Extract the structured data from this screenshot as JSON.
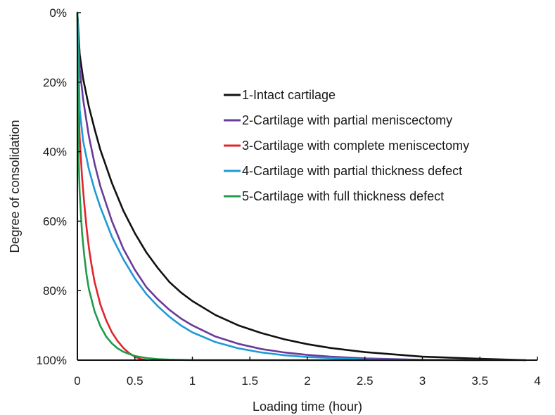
{
  "chart_data": {
    "type": "line",
    "title": "",
    "xlabel": "Loading time (hour)",
    "ylabel": "Degree of consolidation",
    "xlim": [
      0,
      4
    ],
    "ylim": [
      0,
      100
    ],
    "y_axis_inverted": true,
    "grid": false,
    "legend_position": "top-right",
    "x_ticks": [
      {
        "value": 0,
        "label": "0"
      },
      {
        "value": 0.5,
        "label": "0.5"
      },
      {
        "value": 1,
        "label": "1"
      },
      {
        "value": 1.5,
        "label": "1.5"
      },
      {
        "value": 2,
        "label": "2"
      },
      {
        "value": 2.5,
        "label": "2.5"
      },
      {
        "value": 3,
        "label": "3"
      },
      {
        "value": 3.5,
        "label": "3.5"
      },
      {
        "value": 4,
        "label": "4"
      }
    ],
    "y_ticks": [
      {
        "value": 0,
        "label": "0%"
      },
      {
        "value": 20,
        "label": "20%"
      },
      {
        "value": 40,
        "label": "40%"
      },
      {
        "value": 60,
        "label": "60%"
      },
      {
        "value": 80,
        "label": "80%"
      },
      {
        "value": 100,
        "label": "100%"
      }
    ],
    "series": [
      {
        "name": "1-Intact cartilage",
        "color": "#111111",
        "x": [
          0,
          0.02,
          0.05,
          0.1,
          0.15,
          0.2,
          0.3,
          0.4,
          0.5,
          0.6,
          0.7,
          0.8,
          0.9,
          1.0,
          1.2,
          1.4,
          1.6,
          1.8,
          2.0,
          2.2,
          2.5,
          3.0,
          3.5,
          3.9
        ],
        "y": [
          0,
          12,
          19,
          27,
          33.5,
          39.5,
          49,
          57,
          63.5,
          69,
          73.5,
          77.5,
          80.5,
          83,
          87,
          90,
          92.2,
          94,
          95.4,
          96.5,
          97.7,
          99,
          99.6,
          100
        ]
      },
      {
        "name": "2-Cartilage with partial meniscectomy",
        "color": "#6a3a9a",
        "x": [
          0,
          0.02,
          0.05,
          0.1,
          0.15,
          0.2,
          0.3,
          0.4,
          0.5,
          0.6,
          0.7,
          0.8,
          0.9,
          1.0,
          1.2,
          1.4,
          1.6,
          1.8,
          2.0,
          2.2,
          2.5,
          3.0,
          3.5
        ],
        "y": [
          0,
          16,
          25,
          35.5,
          43.5,
          50,
          60,
          68,
          74,
          79,
          82.5,
          85.5,
          88,
          90,
          93.2,
          95.3,
          96.8,
          97.8,
          98.5,
          99,
          99.5,
          99.9,
          100
        ]
      },
      {
        "name": "3-Cartilage with complete meniscectomy",
        "color": "#e0252b",
        "x": [
          0,
          0.01,
          0.02,
          0.04,
          0.06,
          0.08,
          0.1,
          0.12,
          0.15,
          0.2,
          0.25,
          0.3,
          0.35,
          0.4,
          0.45,
          0.5,
          0.55,
          0.6
        ],
        "y": [
          0,
          26,
          36,
          47,
          55,
          62,
          67.5,
          72,
          77.5,
          84,
          88.5,
          92,
          94.5,
          96.5,
          98,
          99,
          99.7,
          100
        ]
      },
      {
        "name": "4-Cartilage with partial thickness defect",
        "color": "#1e9ad6",
        "x": [
          0,
          0.02,
          0.05,
          0.1,
          0.15,
          0.2,
          0.3,
          0.4,
          0.5,
          0.6,
          0.7,
          0.8,
          0.9,
          1.0,
          1.2,
          1.4,
          1.6,
          1.8,
          2.0,
          2.5,
          3.0
        ],
        "y": [
          0,
          28,
          37,
          45,
          51,
          56,
          64.5,
          71,
          76.5,
          81,
          84.5,
          87.5,
          90,
          92,
          94.8,
          96.6,
          97.8,
          98.6,
          99.1,
          99.8,
          100
        ]
      },
      {
        "name": "5-Cartilage with full thickness defect",
        "color": "#1f9b4a",
        "x": [
          0,
          0.005,
          0.01,
          0.02,
          0.04,
          0.06,
          0.08,
          0.1,
          0.15,
          0.2,
          0.25,
          0.3,
          0.35,
          0.4,
          0.5,
          0.6,
          0.7,
          0.8,
          0.9,
          1.0,
          1.5,
          2.0,
          3.0,
          3.9
        ],
        "y": [
          0,
          28,
          41,
          52,
          63,
          70,
          75.5,
          79.5,
          86,
          90.2,
          93.2,
          95.2,
          96.6,
          97.6,
          98.8,
          99.4,
          99.7,
          99.85,
          99.93,
          100,
          100,
          100,
          100,
          100
        ]
      }
    ]
  }
}
